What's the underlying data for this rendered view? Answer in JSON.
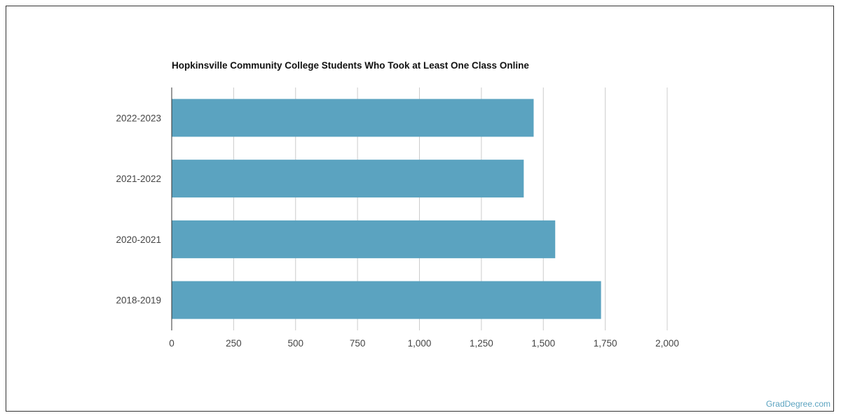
{
  "chart_data": {
    "type": "bar",
    "orientation": "horizontal",
    "title": "Hopkinsville Community College Students Who Took at Least One Class Online",
    "categories": [
      "2022-2023",
      "2021-2022",
      "2020-2021",
      "2018-2019"
    ],
    "values": [
      1461,
      1421,
      1548,
      1733
    ],
    "xlim": [
      0,
      2000
    ],
    "xticks": [
      0,
      250,
      500,
      750,
      1000,
      1250,
      1500,
      1750,
      2000
    ],
    "xtick_labels": [
      "0",
      "250",
      "500",
      "750",
      "1,000",
      "1,250",
      "1,500",
      "1,750",
      "2,000"
    ],
    "xlabel": "",
    "ylabel": "",
    "grid": true,
    "bar_color": "#5ba3c0"
  },
  "credit": "GradDegree.com"
}
